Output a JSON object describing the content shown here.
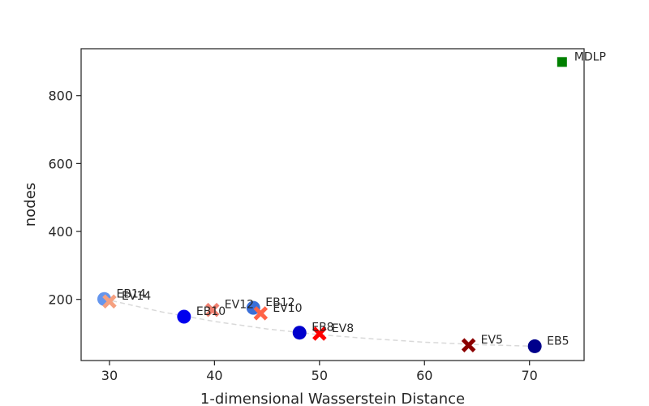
{
  "chart_data": {
    "type": "scatter",
    "title": "",
    "xlabel": "1-dimensional Wasserstein Distance",
    "ylabel": "nodes",
    "xlim": [
      27.3,
      75.2
    ],
    "ylim": [
      20,
      938
    ],
    "xticks": [
      30,
      40,
      50,
      60,
      70
    ],
    "yticks": [
      200,
      400,
      600,
      800
    ],
    "grid": false,
    "legend": "none",
    "points": [
      {
        "label": "EB14",
        "x": 29.5,
        "y": 201,
        "marker": "circle",
        "color": "#6495ed"
      },
      {
        "label": "EV14",
        "x": 30.0,
        "y": 194,
        "marker": "x",
        "color": "#f5a080"
      },
      {
        "label": "EB10",
        "x": 37.1,
        "y": 149,
        "marker": "circle",
        "color": "#0000ee"
      },
      {
        "label": "EV12",
        "x": 39.8,
        "y": 169,
        "marker": "x",
        "color": "#f08070"
      },
      {
        "label": "EB12",
        "x": 43.7,
        "y": 175,
        "marker": "circle",
        "color": "#3a6fd8"
      },
      {
        "label": "EV10",
        "x": 44.4,
        "y": 159,
        "marker": "x",
        "color": "#ff6347"
      },
      {
        "label": "EB8",
        "x": 48.1,
        "y": 102,
        "marker": "circle",
        "color": "#0000cd"
      },
      {
        "label": "EV8",
        "x": 50.0,
        "y": 99,
        "marker": "x",
        "color": "#ff0000"
      },
      {
        "label": "EV5",
        "x": 64.2,
        "y": 65,
        "marker": "x",
        "color": "#8b0000"
      },
      {
        "label": "EB5",
        "x": 70.5,
        "y": 62,
        "marker": "circle",
        "color": "#00008b"
      },
      {
        "label": "MDLP",
        "x": 73.1,
        "y": 899,
        "marker": "square",
        "color": "#008000"
      }
    ],
    "trend_line": {
      "style": "dashed",
      "color": "#d9d9d9",
      "points": [
        [
          29.5,
          201
        ],
        [
          35,
          163
        ],
        [
          40,
          135
        ],
        [
          45,
          113
        ],
        [
          50,
          96
        ],
        [
          55,
          84
        ],
        [
          60,
          74
        ],
        [
          65,
          67
        ],
        [
          70.5,
          62
        ]
      ]
    }
  }
}
